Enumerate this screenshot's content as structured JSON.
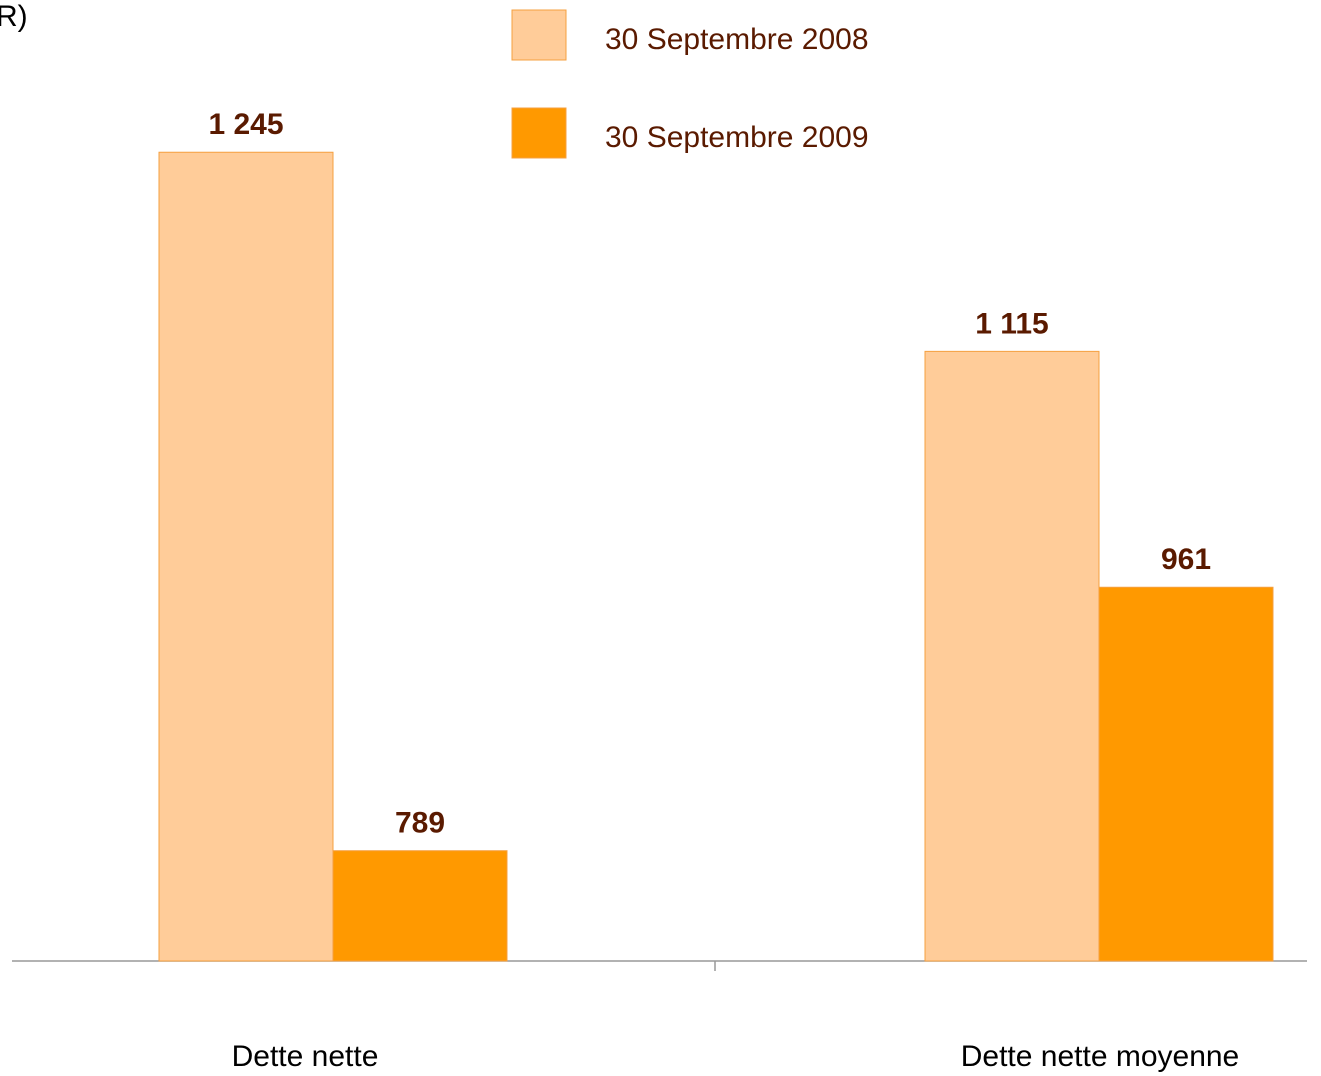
{
  "chart_data": {
    "type": "bar",
    "title": "R)",
    "categories": [
      "Dette nette",
      "Dette nette moyenne"
    ],
    "series": [
      {
        "name": "30 Septembre 2008",
        "color": "#FFCC99",
        "values": [
          1245,
          1115
        ],
        "value_labels": [
          "1 245",
          "1 115"
        ]
      },
      {
        "name": "30 Septembre 2009",
        "color": "#FF9900",
        "values": [
          789,
          961
        ],
        "value_labels": [
          "789",
          "961"
        ]
      }
    ],
    "ylim": [
      717,
      1300
    ]
  }
}
